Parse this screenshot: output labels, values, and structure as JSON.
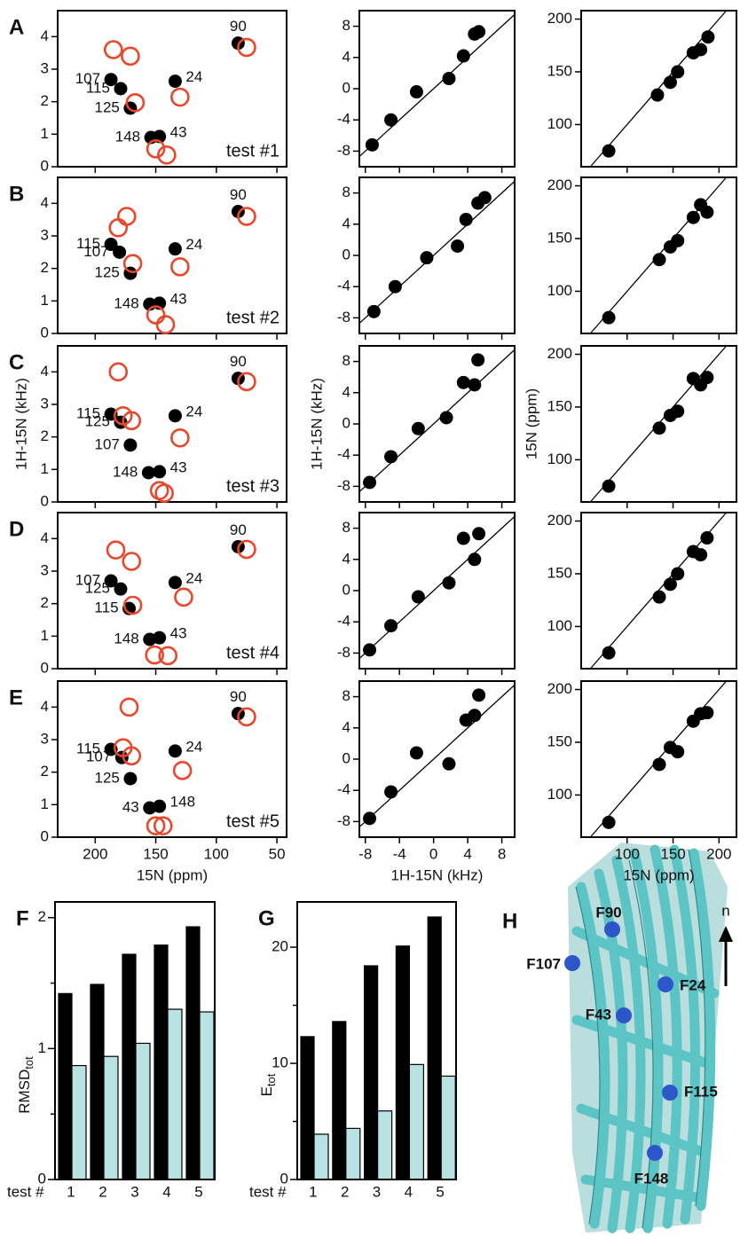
{
  "chart_data": [
    {
      "type": "scatter",
      "panel": "A",
      "annotation": "test #1",
      "xlim": [
        231,
        42
      ],
      "ylim": [
        0,
        4.8
      ],
      "xticks": [
        200,
        150,
        100,
        50
      ],
      "yticks": [
        0,
        1,
        2,
        3,
        4
      ],
      "xtick_labels": false,
      "series": [
        {
          "color": "#000000",
          "marker": "filled",
          "x": [
            82,
            187,
            179,
            171,
            154,
            147,
            134
          ],
          "y": [
            3.8,
            2.68,
            2.4,
            1.8,
            0.9,
            0.93,
            2.63
          ],
          "labels": [
            "90",
            "107",
            "115",
            "125",
            "148",
            "43",
            "24"
          ]
        },
        {
          "color": "#e8472b",
          "marker": "open",
          "x": [
            185,
            171,
            167,
            75,
            130,
            150,
            141
          ],
          "y": [
            3.6,
            3.4,
            1.97,
            3.67,
            2.14,
            0.55,
            0.36
          ]
        }
      ]
    },
    {
      "type": "scatter",
      "diagonal": true,
      "xlim": [
        -8.7,
        9.5
      ],
      "ylim": [
        -10,
        10
      ],
      "xticks": [
        -8,
        -4,
        0,
        4,
        8
      ],
      "yticks": [
        -8,
        -4,
        0,
        4,
        8
      ],
      "xtick_labels": false,
      "series": [
        {
          "color": "#000000",
          "marker": "filled",
          "x": [
            -7.2,
            -5,
            -2,
            1.8,
            3.5,
            4.8,
            5.3
          ],
          "y": [
            -7.2,
            -4,
            -0.4,
            1.3,
            4.2,
            7.0,
            7.3
          ]
        }
      ]
    },
    {
      "type": "scatter",
      "diagonal": true,
      "xlim": [
        50,
        219
      ],
      "ylim": [
        60,
        208
      ],
      "xticks": [
        100,
        150,
        200
      ],
      "yticks": [
        100,
        150,
        200
      ],
      "xtick_labels": false,
      "series": [
        {
          "color": "#000000",
          "marker": "filled",
          "x": [
            80,
            133,
            147,
            155,
            172,
            180,
            188
          ],
          "y": [
            75,
            128,
            140,
            150,
            168,
            171,
            183
          ]
        }
      ]
    },
    {
      "type": "scatter",
      "panel": "B",
      "annotation": "test #2",
      "xlim": [
        231,
        42
      ],
      "ylim": [
        0,
        4.8
      ],
      "xticks": [
        200,
        150,
        100,
        50
      ],
      "yticks": [
        0,
        1,
        2,
        3,
        4
      ],
      "xtick_labels": false,
      "series": [
        {
          "color": "#000000",
          "marker": "filled",
          "x": [
            82,
            187,
            180,
            171,
            155,
            147,
            134
          ],
          "y": [
            3.75,
            2.74,
            2.5,
            1.85,
            0.9,
            0.93,
            2.6
          ],
          "labels": [
            "90",
            "115",
            "107",
            "125",
            "148",
            "43",
            "24"
          ]
        },
        {
          "color": "#e8472b",
          "marker": "open",
          "x": [
            181,
            174,
            169,
            75,
            130,
            150,
            142
          ],
          "y": [
            3.25,
            3.6,
            2.15,
            3.6,
            2.05,
            0.57,
            0.27
          ]
        }
      ]
    },
    {
      "type": "scatter",
      "diagonal": true,
      "xlim": [
        -8.7,
        9.5
      ],
      "ylim": [
        -10,
        10
      ],
      "xticks": [
        -8,
        -4,
        0,
        4,
        8
      ],
      "yticks": [
        -8,
        -4,
        0,
        4,
        8
      ],
      "xtick_labels": false,
      "series": [
        {
          "color": "#000000",
          "marker": "filled",
          "x": [
            -7,
            -4.5,
            -0.8,
            2.8,
            3.8,
            5.2,
            6
          ],
          "y": [
            -7.2,
            -4,
            -0.3,
            1.2,
            4.6,
            6.7,
            7.4
          ]
        }
      ]
    },
    {
      "type": "scatter",
      "diagonal": true,
      "xlim": [
        50,
        219
      ],
      "ylim": [
        60,
        208
      ],
      "xticks": [
        100,
        150,
        200
      ],
      "yticks": [
        100,
        150,
        200
      ],
      "xtick_labels": false,
      "series": [
        {
          "color": "#000000",
          "marker": "filled",
          "x": [
            80,
            135,
            147,
            155,
            172,
            180,
            187
          ],
          "y": [
            75,
            130,
            142,
            148,
            170,
            182,
            175
          ]
        }
      ]
    },
    {
      "type": "scatter",
      "panel": "C",
      "annotation": "test #3",
      "ylabel": "1H-15N (kHz)",
      "xlim": [
        231,
        42
      ],
      "ylim": [
        0,
        4.8
      ],
      "xticks": [
        200,
        150,
        100,
        50
      ],
      "yticks": [
        0,
        1,
        2,
        3,
        4
      ],
      "xtick_labels": false,
      "series": [
        {
          "color": "#000000",
          "marker": "filled",
          "x": [
            82,
            187,
            179,
            171,
            156,
            147,
            134
          ],
          "y": [
            3.8,
            2.7,
            2.45,
            1.75,
            0.9,
            0.93,
            2.65
          ],
          "labels": [
            "90",
            "115",
            "125",
            "107",
            "148",
            "43",
            "24"
          ]
        },
        {
          "color": "#e8472b",
          "marker": "open",
          "x": [
            181,
            177,
            170,
            75,
            130,
            147,
            143
          ],
          "y": [
            4.0,
            2.65,
            2.5,
            3.7,
            1.97,
            0.35,
            0.27
          ]
        }
      ]
    },
    {
      "type": "scatter",
      "diagonal": true,
      "ylabel": "1H-15N (kHz)",
      "xlim": [
        -8.7,
        9.5
      ],
      "ylim": [
        -10,
        10
      ],
      "xticks": [
        -8,
        -4,
        0,
        4,
        8
      ],
      "yticks": [
        -8,
        -4,
        0,
        4,
        8
      ],
      "xtick_labels": false,
      "series": [
        {
          "color": "#000000",
          "marker": "filled",
          "x": [
            -7.5,
            -5,
            -1.8,
            1.5,
            3.5,
            4.8,
            5.2
          ],
          "y": [
            -7.5,
            -4.2,
            -0.6,
            0.8,
            5.3,
            5.0,
            8.2
          ]
        }
      ]
    },
    {
      "type": "scatter",
      "diagonal": true,
      "ylabel": "15N (ppm)",
      "xlim": [
        50,
        219
      ],
      "ylim": [
        60,
        208
      ],
      "xticks": [
        100,
        150,
        200
      ],
      "yticks": [
        100,
        150,
        200
      ],
      "xtick_labels": false,
      "series": [
        {
          "color": "#000000",
          "marker": "filled",
          "x": [
            80,
            135,
            147,
            155,
            172,
            180,
            187
          ],
          "y": [
            75,
            130,
            142,
            146,
            177,
            171,
            178
          ]
        }
      ]
    },
    {
      "type": "scatter",
      "panel": "D",
      "annotation": "test #4",
      "xlim": [
        231,
        42
      ],
      "ylim": [
        0,
        4.8
      ],
      "xticks": [
        200,
        150,
        100,
        50
      ],
      "yticks": [
        0,
        1,
        2,
        3,
        4
      ],
      "xtick_labels": false,
      "series": [
        {
          "color": "#000000",
          "marker": "filled",
          "x": [
            82,
            187,
            179,
            172,
            155,
            147,
            134
          ],
          "y": [
            3.75,
            2.7,
            2.45,
            1.85,
            0.9,
            0.95,
            2.65
          ],
          "labels": [
            "90",
            "107",
            "125",
            "115",
            "148",
            "43",
            "24"
          ]
        },
        {
          "color": "#e8472b",
          "marker": "open",
          "x": [
            183,
            170,
            169,
            75,
            127,
            151,
            140
          ],
          "y": [
            3.65,
            3.3,
            1.95,
            3.67,
            2.2,
            0.42,
            0.4
          ]
        }
      ]
    },
    {
      "type": "scatter",
      "diagonal": true,
      "xlim": [
        -8.7,
        9.5
      ],
      "ylim": [
        -10,
        10
      ],
      "xticks": [
        -8,
        -4,
        0,
        4,
        8
      ],
      "yticks": [
        -8,
        -4,
        0,
        4,
        8
      ],
      "xtick_labels": false,
      "series": [
        {
          "color": "#000000",
          "marker": "filled",
          "x": [
            -7.5,
            -5,
            -1.8,
            1.8,
            3.5,
            4.8,
            5.3
          ],
          "y": [
            -7.6,
            -4.5,
            -0.8,
            1.0,
            6.7,
            4.0,
            7.3
          ]
        }
      ]
    },
    {
      "type": "scatter",
      "diagonal": true,
      "xlim": [
        50,
        219
      ],
      "ylim": [
        60,
        208
      ],
      "xticks": [
        100,
        150,
        200
      ],
      "yticks": [
        100,
        150,
        200
      ],
      "xtick_labels": false,
      "series": [
        {
          "color": "#000000",
          "marker": "filled",
          "x": [
            80,
            135,
            147,
            155,
            172,
            180,
            187
          ],
          "y": [
            75,
            128,
            140,
            150,
            171,
            168,
            184
          ]
        }
      ]
    },
    {
      "type": "scatter",
      "panel": "E",
      "annotation": "test #5",
      "xlabel": "15N (ppm)",
      "xlim": [
        231,
        42
      ],
      "ylim": [
        0,
        4.8
      ],
      "xticks": [
        200,
        150,
        100,
        50
      ],
      "yticks": [
        0,
        1,
        2,
        3,
        4
      ],
      "xtick_labels": true,
      "series": [
        {
          "color": "#000000",
          "marker": "filled",
          "x": [
            82,
            187,
            178,
            171,
            155,
            147,
            134
          ],
          "y": [
            3.8,
            2.7,
            2.45,
            1.8,
            0.9,
            0.95,
            2.65
          ],
          "labels": [
            "90",
            "115",
            "107",
            "125",
            "43",
            "148",
            "24"
          ]
        },
        {
          "color": "#e8472b",
          "marker": "open",
          "x": [
            172,
            177,
            170,
            75,
            128,
            150,
            144
          ],
          "y": [
            4.0,
            2.75,
            2.5,
            3.7,
            2.05,
            0.35,
            0.35
          ]
        }
      ]
    },
    {
      "type": "scatter",
      "diagonal": true,
      "xlabel": "1H-15N (kHz)",
      "xlim": [
        -8.7,
        9.5
      ],
      "ylim": [
        -10,
        10
      ],
      "xticks": [
        -8,
        -4,
        0,
        4,
        8
      ],
      "yticks": [
        -8,
        -4,
        0,
        4,
        8
      ],
      "xtick_labels": true,
      "series": [
        {
          "color": "#000000",
          "marker": "filled",
          "x": [
            -7.5,
            -5,
            -2,
            1.8,
            3.8,
            4.8,
            5.3
          ],
          "y": [
            -7.6,
            -4.2,
            0.8,
            -0.6,
            5.0,
            5.6,
            8.2
          ]
        }
      ]
    },
    {
      "type": "scatter",
      "diagonal": true,
      "xlabel": "15N (ppm)",
      "xlim": [
        50,
        219
      ],
      "ylim": [
        60,
        208
      ],
      "xticks": [
        100,
        150,
        200
      ],
      "yticks": [
        100,
        150,
        200
      ],
      "xtick_labels": true,
      "series": [
        {
          "color": "#000000",
          "marker": "filled",
          "x": [
            80,
            135,
            147,
            155,
            172,
            180,
            187
          ],
          "y": [
            74,
            129,
            145,
            141,
            170,
            177,
            178
          ]
        }
      ]
    },
    {
      "type": "bar",
      "panel": "F",
      "xlabel": "test #",
      "ylabel": "RMSD",
      "ylabel_sub": "tot",
      "categories": [
        "1",
        "2",
        "3",
        "4",
        "5"
      ],
      "ylim": [
        0,
        2.12
      ],
      "yticks": [
        0,
        1,
        2
      ],
      "yminor": [
        0.5,
        1.5
      ],
      "series": [
        {
          "color": "#000000",
          "values": [
            1.42,
            1.49,
            1.72,
            1.79,
            1.93
          ]
        },
        {
          "color": "#b9e3e3",
          "values": [
            0.87,
            0.94,
            1.04,
            1.3,
            1.28
          ]
        }
      ]
    },
    {
      "type": "bar",
      "panel": "G",
      "xlabel": "test #",
      "ylabel": "E",
      "ylabel_sub": "tot",
      "categories": [
        "1",
        "2",
        "3",
        "4",
        "5"
      ],
      "ylim": [
        0,
        23.9
      ],
      "yticks": [
        0,
        10,
        20
      ],
      "yminor": [
        5,
        15
      ],
      "series": [
        {
          "color": "#000000",
          "values": [
            12.3,
            13.6,
            18.4,
            20.1,
            22.6
          ]
        },
        {
          "color": "#b9e3e3",
          "values": [
            3.9,
            4.4,
            5.9,
            9.9,
            8.9
          ]
        }
      ]
    }
  ],
  "structure": {
    "panel": "H",
    "axis_label": "n",
    "residues": [
      "F90",
      "F107",
      "F24",
      "F43",
      "F115",
      "F148"
    ]
  }
}
